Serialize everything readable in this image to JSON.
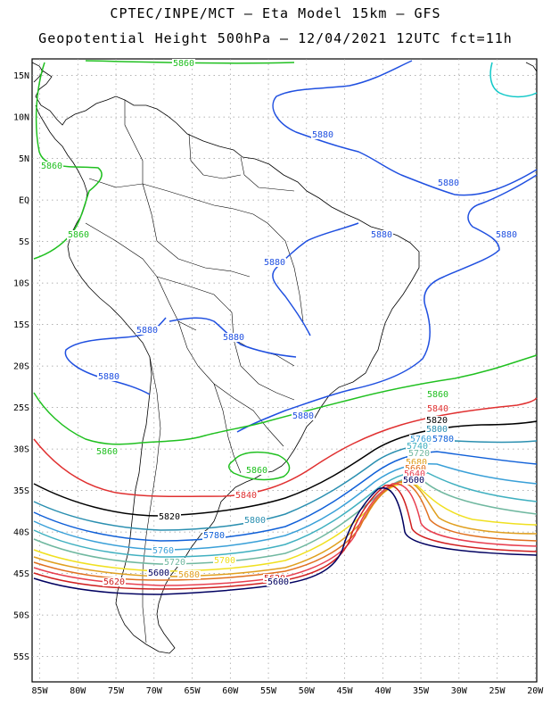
{
  "header": {
    "line1": "CPTEC/INPE/MCT –  Eta Model 15km – GFS",
    "line2": "Geopotential Height 500hPa – 12/04/2021 12UTC fct=11h"
  },
  "axes": {
    "lat_labels": [
      "15N",
      "10N",
      "5N",
      "EQ",
      "5S",
      "10S",
      "15S",
      "20S",
      "25S",
      "30S",
      "35S",
      "40S",
      "45S",
      "50S",
      "55S"
    ],
    "lon_labels": [
      "85W",
      "80W",
      "75W",
      "70W",
      "65W",
      "60W",
      "55W",
      "50W",
      "45W",
      "40W",
      "35W",
      "30W",
      "25W",
      "20W"
    ]
  },
  "colors": {
    "5880": "#2050e0",
    "5860": "#20c020",
    "5840": "#e03030",
    "5820": "#000000",
    "5800": "#2a8fb0",
    "5780": "#1060d8",
    "5760": "#3aa0d8",
    "5740": "#40b0c0",
    "5720": "#70b8a0",
    "5700": "#f0e020",
    "5680": "#e0a020",
    "5660": "#e07020",
    "5640": "#e84050",
    "5620": "#d02020",
    "5600": "#000060",
    "cyan": "#10c8c8"
  },
  "contour_labels": [
    {
      "id": "l5860-top",
      "text": "5860",
      "color_key": "5860"
    },
    {
      "id": "l5860-a",
      "text": "5860",
      "color_key": "5860"
    },
    {
      "id": "l5860-b",
      "text": "5860",
      "color_key": "5860"
    },
    {
      "id": "l5880-a",
      "text": "5880",
      "color_key": "5880"
    },
    {
      "id": "l5880-b",
      "text": "5880",
      "color_key": "5880"
    },
    {
      "id": "l5880-c",
      "text": "5880",
      "color_key": "5880"
    },
    {
      "id": "l5880-d",
      "text": "5880",
      "color_key": "5880"
    },
    {
      "id": "l5880-e",
      "text": "5880",
      "color_key": "5880"
    },
    {
      "id": "l5880-f",
      "text": "5880",
      "color_key": "5880"
    },
    {
      "id": "l5880-g",
      "text": "5880",
      "color_key": "5880"
    },
    {
      "id": "l5880-h",
      "text": "5880",
      "color_key": "5880"
    },
    {
      "id": "l5880-i",
      "text": "5880",
      "color_key": "5880"
    },
    {
      "id": "l5860-c",
      "text": "5860",
      "color_key": "5860"
    },
    {
      "id": "l5860-d",
      "text": "5860",
      "color_key": "5860"
    },
    {
      "id": "l5860-e",
      "text": "5860",
      "color_key": "5860"
    },
    {
      "id": "l5840-a",
      "text": "5840",
      "color_key": "5840"
    },
    {
      "id": "l5840-b",
      "text": "5840",
      "color_key": "5840"
    },
    {
      "id": "l5820-a",
      "text": "5820",
      "color_key": "5820"
    },
    {
      "id": "l5820-b",
      "text": "5820",
      "color_key": "5820"
    },
    {
      "id": "l5800-a",
      "text": "5800",
      "color_key": "5800"
    },
    {
      "id": "l5800-b",
      "text": "5800",
      "color_key": "5800"
    },
    {
      "id": "l5780-a",
      "text": "5780",
      "color_key": "5780"
    },
    {
      "id": "l5780-b",
      "text": "5780",
      "color_key": "5780"
    },
    {
      "id": "l5760-a",
      "text": "5760",
      "color_key": "5760"
    },
    {
      "id": "l5760-b",
      "text": "5760",
      "color_key": "5760"
    },
    {
      "id": "l5740-a",
      "text": "5740",
      "color_key": "5740"
    },
    {
      "id": "l5720-a",
      "text": "5720",
      "color_key": "5720"
    },
    {
      "id": "l5720-b",
      "text": "5720",
      "color_key": "5720"
    },
    {
      "id": "l5700-a",
      "text": "5700",
      "color_key": "5700"
    },
    {
      "id": "l5680-a",
      "text": "5680",
      "color_key": "5680"
    },
    {
      "id": "l5680-b",
      "text": "5680",
      "color_key": "5680"
    },
    {
      "id": "l5660-a",
      "text": "5660",
      "color_key": "5660"
    },
    {
      "id": "l5640-a",
      "text": "5640",
      "color_key": "5640"
    },
    {
      "id": "l5620-a",
      "text": "5620",
      "color_key": "5620"
    },
    {
      "id": "l5620-b",
      "text": "5620",
      "color_key": "5620"
    },
    {
      "id": "l5600-a",
      "text": "5600",
      "color_key": "5600"
    },
    {
      "id": "l5600-b",
      "text": "5600",
      "color_key": "5600"
    },
    {
      "id": "l5600-c",
      "text": "5600",
      "color_key": "5600"
    }
  ]
}
